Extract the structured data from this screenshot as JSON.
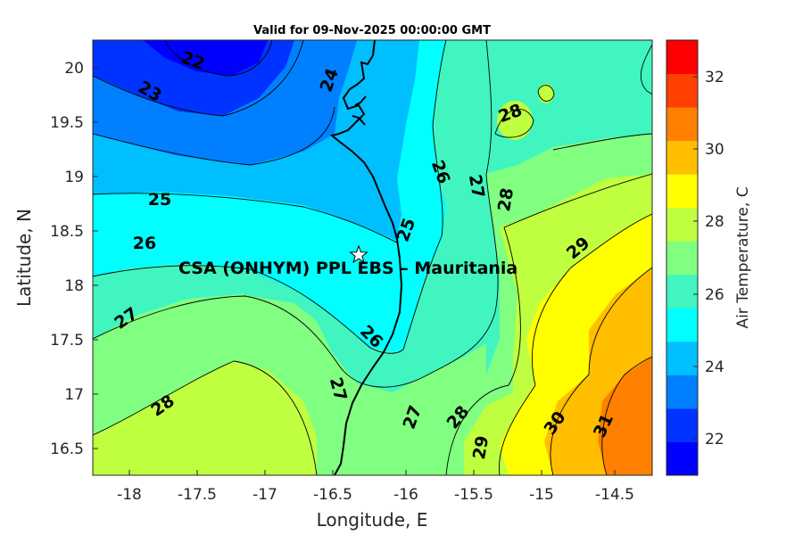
{
  "title": "Valid for 09-Nov-2025 00:00:00 GMT",
  "site_label": "CSA (ONHYM) PPL EBS  – Mauritania",
  "x_axis": {
    "label": "Longitude, E",
    "ticks": [
      "-18",
      "-17.5",
      "-17",
      "-16.5",
      "-16",
      "-15.5",
      "-15",
      "-14.5"
    ]
  },
  "y_axis": {
    "label": "Latitude, N",
    "ticks": [
      "20",
      "19.5",
      "19",
      "18.5",
      "18",
      "17.5",
      "17",
      "16.5"
    ]
  },
  "colorbar": {
    "label": "Air Temperature, C",
    "ticks": [
      "32",
      "30",
      "28",
      "26",
      "24",
      "22"
    ],
    "colors": [
      "#0000ff",
      "#0033ff",
      "#0080ff",
      "#00bfff",
      "#00ffff",
      "#40f5c0",
      "#80ff80",
      "#bfff40",
      "#ffff00",
      "#ffbf00",
      "#ff8000",
      "#ff4000",
      "#ff0000"
    ]
  },
  "contour_labels": [
    "22",
    "23",
    "24",
    "25",
    "26",
    "26",
    "27",
    "28",
    "28",
    "25",
    "27",
    "26",
    "27",
    "28",
    "29",
    "27",
    "28",
    "29",
    "30",
    "31"
  ],
  "chart_data": {
    "type": "contour",
    "title": "Valid for 09-Nov-2025 00:00:00 GMT",
    "xlabel": "Longitude, E",
    "ylabel": "Latitude, N",
    "xlim": [
      -18.35,
      -14.15
    ],
    "ylim": [
      16.25,
      20.25
    ],
    "colorbar_label": "Air Temperature, C",
    "colorbar_range": [
      21,
      33
    ],
    "contour_levels": [
      22,
      23,
      24,
      25,
      26,
      27,
      28,
      29,
      30,
      31
    ],
    "site": {
      "name": "CSA (ONHYM) PPL EBS  – Mauritania",
      "lon": -16.35,
      "lat": 18.28
    }
  }
}
